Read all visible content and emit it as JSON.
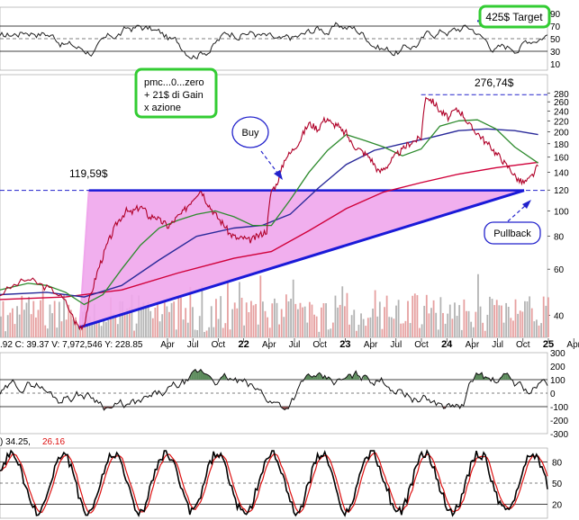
{
  "chart_data": {
    "type": "line",
    "colors": {
      "price": "#b00028",
      "sma_fast": "#2e8b2e",
      "sma_mid": "#2a2a9a",
      "sma_slow": "#d0003a",
      "triangle_fill": "#f0a6ec",
      "trendline": "#1a1ad8",
      "annotation_border": "#33cc33",
      "callout_border": "#2222cc",
      "volume_up": "#b4b4b4",
      "volume_down": "#e6a0a0",
      "osc_positive": "#5a8a5a",
      "osc_negative": "#8a4a4a",
      "stoch_k": "#000000",
      "stoch_d": "#dd1111"
    },
    "x_axis": {
      "ticks": [
        "Apr",
        "Jul",
        "Oct",
        "22",
        "Apr",
        "Jul",
        "Oct",
        "23",
        "Apr",
        "Jul",
        "Oct",
        "24",
        "Apr",
        "Jul",
        "Oct",
        "25",
        "Apr"
      ],
      "year_ticks": [
        "22",
        "23",
        "24",
        "25"
      ]
    },
    "top_panel": {
      "ticks": [
        "90",
        "70",
        "50",
        "30",
        "10"
      ],
      "target_label": "425$ Target"
    },
    "main_panel": {
      "scale": "log",
      "y_ticks": [
        "280",
        "260",
        "240",
        "220",
        "200",
        "180",
        "160",
        "140",
        "120",
        "100",
        "80",
        "60",
        "40"
      ],
      "level_high_label": "276,74$",
      "level_breakout_label": "119,59$",
      "level_high": 276.74,
      "level_breakout": 119.59,
      "stats_text": ".92   C: 39.37   V: 7,972,546   Y: 228.85",
      "note_box_lines": [
        "pmc...0...zero",
        "+ 21$ di Gain",
        "x azione"
      ],
      "buy_label": "Buy",
      "pullback_label": "Pullback",
      "price_series": [
        [
          0,
          48
        ],
        [
          3,
          52
        ],
        [
          6,
          55
        ],
        [
          8,
          53
        ],
        [
          10,
          51
        ],
        [
          12,
          49
        ],
        [
          14,
          45
        ],
        [
          16,
          38
        ],
        [
          17,
          36
        ],
        [
          18,
          37
        ],
        [
          19,
          45
        ],
        [
          20,
          52
        ],
        [
          21,
          60
        ],
        [
          22,
          67
        ],
        [
          23,
          75
        ],
        [
          24,
          82
        ],
        [
          25,
          90
        ],
        [
          26,
          95
        ],
        [
          27,
          100
        ],
        [
          28,
          98
        ],
        [
          29,
          101
        ],
        [
          30,
          104
        ],
        [
          31,
          100
        ],
        [
          32,
          94
        ],
        [
          33,
          96
        ],
        [
          34,
          92
        ],
        [
          35,
          90
        ],
        [
          36,
          87
        ],
        [
          37,
          91
        ],
        [
          38,
          95
        ],
        [
          39,
          98
        ],
        [
          40,
          104
        ],
        [
          41,
          110
        ],
        [
          42,
          116
        ],
        [
          43,
          120
        ],
        [
          44,
          110
        ],
        [
          45,
          103
        ],
        [
          46,
          97
        ],
        [
          47,
          92
        ],
        [
          48,
          88
        ],
        [
          49,
          82
        ],
        [
          50,
          80
        ],
        [
          51,
          78
        ],
        [
          52,
          79
        ],
        [
          53,
          77
        ],
        [
          54,
          78
        ],
        [
          55,
          80
        ],
        [
          56,
          82
        ],
        [
          57,
          84
        ],
        [
          58,
          120
        ],
        [
          59,
          125
        ],
        [
          60,
          140
        ],
        [
          61,
          160
        ],
        [
          62,
          165
        ],
        [
          63,
          175
        ],
        [
          64,
          184
        ],
        [
          65,
          200
        ],
        [
          66,
          215
        ],
        [
          67,
          210
        ],
        [
          68,
          205
        ],
        [
          69,
          220
        ],
        [
          70,
          225
        ],
        [
          71,
          212
        ],
        [
          72,
          214
        ],
        [
          73,
          200
        ],
        [
          74,
          198
        ],
        [
          75,
          182
        ],
        [
          76,
          175
        ],
        [
          77,
          170
        ],
        [
          78,
          165
        ],
        [
          79,
          160
        ],
        [
          80,
          150
        ],
        [
          81,
          140
        ],
        [
          82,
          145
        ],
        [
          83,
          150
        ],
        [
          84,
          158
        ],
        [
          85,
          165
        ],
        [
          86,
          170
        ],
        [
          87,
          178
        ],
        [
          88,
          183
        ],
        [
          89,
          186
        ],
        [
          90,
          190
        ],
        [
          91,
          275
        ],
        [
          92,
          265
        ],
        [
          93,
          255
        ],
        [
          94,
          240
        ],
        [
          95,
          232
        ],
        [
          96,
          225
        ],
        [
          97,
          240
        ],
        [
          98,
          242
        ],
        [
          99,
          232
        ],
        [
          100,
          215
        ],
        [
          101,
          205
        ],
        [
          102,
          198
        ],
        [
          103,
          190
        ],
        [
          104,
          180
        ],
        [
          105,
          175
        ],
        [
          106,
          165
        ],
        [
          107,
          160
        ],
        [
          108,
          150
        ],
        [
          109,
          145
        ],
        [
          110,
          136
        ],
        [
          111,
          130
        ],
        [
          112,
          128
        ],
        [
          113,
          131
        ],
        [
          114,
          138
        ],
        [
          115,
          148
        ]
      ],
      "sma_fast_series": [
        [
          0,
          50
        ],
        [
          6,
          53
        ],
        [
          10,
          52
        ],
        [
          14,
          49
        ],
        [
          18,
          44
        ],
        [
          22,
          48
        ],
        [
          26,
          60
        ],
        [
          30,
          74
        ],
        [
          34,
          86
        ],
        [
          38,
          92
        ],
        [
          42,
          97
        ],
        [
          46,
          100
        ],
        [
          50,
          95
        ],
        [
          54,
          88
        ],
        [
          58,
          88
        ],
        [
          62,
          110
        ],
        [
          66,
          140
        ],
        [
          70,
          170
        ],
        [
          74,
          195
        ],
        [
          78,
          185
        ],
        [
          82,
          175
        ],
        [
          86,
          162
        ],
        [
          90,
          172
        ],
        [
          94,
          210
        ],
        [
          98,
          220
        ],
        [
          102,
          222
        ],
        [
          106,
          205
        ],
        [
          110,
          175
        ],
        [
          115,
          152
        ]
      ],
      "sma_mid_series": [
        [
          0,
          48
        ],
        [
          10,
          49
        ],
        [
          18,
          47
        ],
        [
          26,
          52
        ],
        [
          34,
          65
        ],
        [
          42,
          80
        ],
        [
          50,
          86
        ],
        [
          56,
          88
        ],
        [
          62,
          97
        ],
        [
          68,
          122
        ],
        [
          74,
          150
        ],
        [
          80,
          170
        ],
        [
          86,
          180
        ],
        [
          92,
          190
        ],
        [
          98,
          202
        ],
        [
          104,
          205
        ],
        [
          110,
          202
        ],
        [
          115,
          195
        ]
      ],
      "sma_slow_series": [
        [
          0,
          46
        ],
        [
          14,
          47
        ],
        [
          26,
          50
        ],
        [
          38,
          58
        ],
        [
          50,
          66
        ],
        [
          58,
          70
        ],
        [
          66,
          84
        ],
        [
          74,
          102
        ],
        [
          82,
          118
        ],
        [
          90,
          128
        ],
        [
          98,
          138
        ],
        [
          106,
          146
        ],
        [
          115,
          153
        ]
      ]
    },
    "oscillator_panel": {
      "ticks": [
        "300",
        "200",
        "100",
        "0",
        "-100",
        "-200",
        "-300"
      ]
    },
    "stochastic_panel": {
      "header_text": ") 34.25,",
      "header_value2": "26.16",
      "ticks": [
        "80",
        "50",
        "20"
      ]
    }
  }
}
